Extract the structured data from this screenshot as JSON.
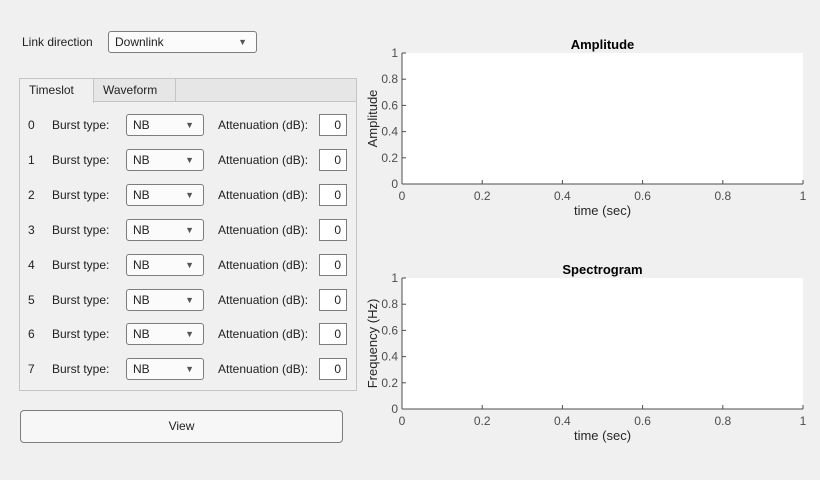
{
  "link_direction": {
    "label": "Link direction",
    "value": "Downlink"
  },
  "tabs": [
    {
      "label": "Timeslot",
      "active": true
    },
    {
      "label": "Waveform",
      "active": false
    }
  ],
  "timeslots": [
    {
      "index": "0",
      "burst_label": "Burst type:",
      "burst_value": "NB",
      "atten_label": "Attenuation (dB):",
      "atten_value": "0"
    },
    {
      "index": "1",
      "burst_label": "Burst type:",
      "burst_value": "NB",
      "atten_label": "Attenuation (dB):",
      "atten_value": "0"
    },
    {
      "index": "2",
      "burst_label": "Burst type:",
      "burst_value": "NB",
      "atten_label": "Attenuation (dB):",
      "atten_value": "0"
    },
    {
      "index": "3",
      "burst_label": "Burst type:",
      "burst_value": "NB",
      "atten_label": "Attenuation (dB):",
      "atten_value": "0"
    },
    {
      "index": "4",
      "burst_label": "Burst type:",
      "burst_value": "NB",
      "atten_label": "Attenuation (dB):",
      "atten_value": "0"
    },
    {
      "index": "5",
      "burst_label": "Burst type:",
      "burst_value": "NB",
      "atten_label": "Attenuation (dB):",
      "atten_value": "0"
    },
    {
      "index": "6",
      "burst_label": "Burst type:",
      "burst_value": "NB",
      "atten_label": "Attenuation (dB):",
      "atten_value": "0"
    },
    {
      "index": "7",
      "burst_label": "Burst type:",
      "burst_value": "NB",
      "atten_label": "Attenuation (dB):",
      "atten_value": "0"
    }
  ],
  "view_button": "View",
  "chart_data": [
    {
      "type": "line",
      "title": "Amplitude",
      "xlabel": "time (sec)",
      "ylabel": "Amplitude",
      "xlim": [
        0,
        1
      ],
      "ylim": [
        0,
        1
      ],
      "xticks": [
        "0",
        "0.2",
        "0.4",
        "0.6",
        "0.8",
        "1"
      ],
      "yticks": [
        "0",
        "0.2",
        "0.4",
        "0.6",
        "0.8",
        "1"
      ],
      "grid": false,
      "series": []
    },
    {
      "type": "heatmap",
      "title": "Spectrogram",
      "xlabel": "time (sec)",
      "ylabel": "Frequency (Hz)",
      "xlim": [
        0,
        1
      ],
      "ylim": [
        0,
        1
      ],
      "xticks": [
        "0",
        "0.2",
        "0.4",
        "0.6",
        "0.8",
        "1"
      ],
      "yticks": [
        "0",
        "0.2",
        "0.4",
        "0.6",
        "0.8",
        "1"
      ],
      "grid": false,
      "series": []
    }
  ]
}
